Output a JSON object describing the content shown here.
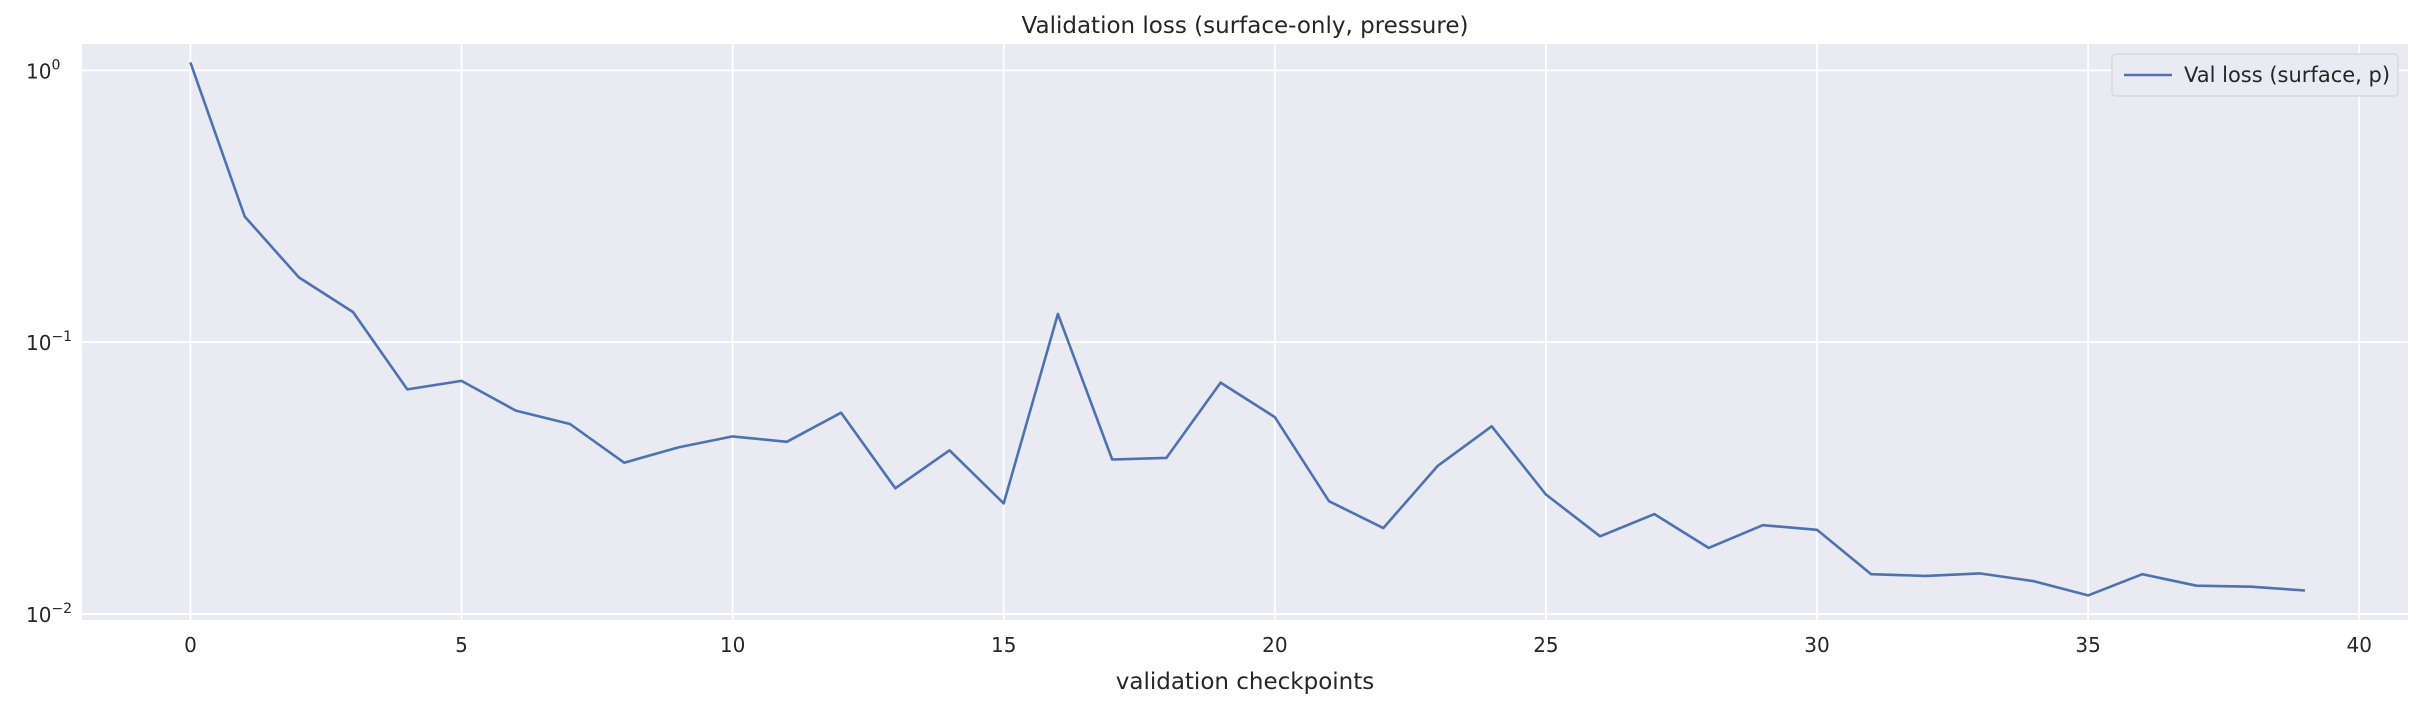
{
  "chart_data": {
    "type": "line",
    "title": "Validation loss (surface-only, pressure)",
    "xlabel": "validation checkpoints",
    "ylabel": "",
    "yscale": "log",
    "xlim": [
      -2,
      40.9
    ],
    "ylim": [
      0.0095,
      1.25
    ],
    "x_ticks": [
      0,
      5,
      10,
      15,
      20,
      25,
      30,
      35,
      40
    ],
    "y_ticks": [
      {
        "value": 1,
        "base": "10",
        "exp": "0"
      },
      {
        "value": 0.1,
        "base": "10",
        "exp": "−1"
      },
      {
        "value": 0.01,
        "base": "10",
        "exp": "−2"
      }
    ],
    "grid": true,
    "legend_position": "top-right",
    "colors": {
      "background": "#eaeaf2",
      "grid": "#ffffff",
      "series": "#4c72b0",
      "text": "#262626"
    },
    "x": [
      0,
      1,
      2,
      3,
      4,
      5,
      6,
      7,
      8,
      9,
      10,
      11,
      12,
      13,
      14,
      15,
      16,
      17,
      18,
      19,
      20,
      21,
      22,
      23,
      24,
      25,
      26,
      27,
      28,
      29,
      30,
      31,
      32,
      33,
      34,
      35,
      36,
      37,
      38,
      39
    ],
    "series": [
      {
        "name": "Val loss (surface, p)",
        "values": [
          1.07,
          0.29,
          0.173,
          0.129,
          0.067,
          0.072,
          0.056,
          0.05,
          0.036,
          0.041,
          0.045,
          0.043,
          0.055,
          0.029,
          0.04,
          0.0255,
          0.127,
          0.037,
          0.0375,
          0.071,
          0.053,
          0.026,
          0.0207,
          0.035,
          0.049,
          0.0275,
          0.0193,
          0.0233,
          0.0175,
          0.0212,
          0.0204,
          0.014,
          0.0138,
          0.0141,
          0.0132,
          0.0117,
          0.014,
          0.0127,
          0.0126,
          0.0122
        ]
      }
    ]
  }
}
